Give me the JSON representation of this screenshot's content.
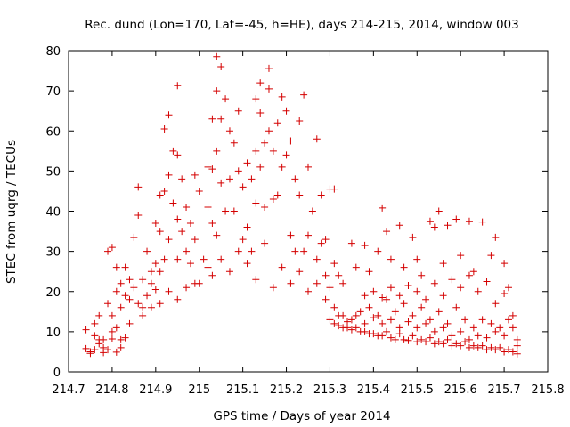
{
  "chart_data": {
    "type": "scatter",
    "title": "Rec. dund (Lon=170, Lat=-45, h=HE), days 214-215, 2014, window 003",
    "xlabel": "GPS time / Days of year 2014",
    "ylabel": "STEC from uqrg / TECUs",
    "xlim": [
      214.7,
      215.8
    ],
    "ylim": [
      0,
      80
    ],
    "xticks": [
      "214.7",
      "214.8",
      "214.9",
      "215",
      "215.1",
      "215.2",
      "215.3",
      "215.4",
      "215.5",
      "215.6",
      "215.7",
      "215.8"
    ],
    "yticks": [
      "0",
      "10",
      "20",
      "30",
      "40",
      "50",
      "60",
      "70",
      "80"
    ],
    "grid": false,
    "marker": "+",
    "colors": {
      "points": "#d40000",
      "axes": "#000000"
    },
    "series": [
      {
        "points": [
          [
            214.74,
            10.5
          ],
          [
            214.74,
            5.8
          ],
          [
            214.75,
            5.0
          ],
          [
            214.75,
            4.6
          ],
          [
            214.76,
            9.0
          ],
          [
            214.76,
            5.5
          ],
          [
            214.77,
            14.0
          ],
          [
            214.77,
            7.0
          ],
          [
            214.78,
            4.8
          ],
          [
            214.78,
            8.0
          ],
          [
            214.79,
            30.0
          ],
          [
            214.79,
            17.0
          ],
          [
            214.79,
            5.5
          ],
          [
            214.8,
            31.0
          ],
          [
            214.8,
            14.0
          ],
          [
            214.8,
            8.2
          ],
          [
            214.81,
            26.0
          ],
          [
            214.81,
            20.0
          ],
          [
            214.81,
            11.0
          ],
          [
            214.81,
            4.9
          ],
          [
            214.82,
            22.0
          ],
          [
            214.82,
            16.0
          ],
          [
            214.82,
            6.0
          ],
          [
            214.83,
            26.0
          ],
          [
            214.83,
            19.0
          ],
          [
            214.83,
            8.5
          ],
          [
            214.84,
            23.0
          ],
          [
            214.84,
            12.0
          ],
          [
            214.85,
            33.5
          ],
          [
            214.85,
            21.0
          ],
          [
            214.86,
            46.0
          ],
          [
            214.86,
            39.0
          ],
          [
            214.86,
            17.0
          ],
          [
            214.87,
            23.0
          ],
          [
            214.87,
            14.0
          ],
          [
            214.88,
            30.0
          ],
          [
            214.88,
            19.0
          ],
          [
            214.89,
            25.0
          ],
          [
            214.89,
            16.0
          ],
          [
            214.9,
            37.0
          ],
          [
            214.9,
            27.0
          ],
          [
            214.9,
            20.5
          ],
          [
            214.91,
            44.0
          ],
          [
            214.91,
            35.0
          ],
          [
            214.91,
            25.0
          ],
          [
            214.92,
            60.5
          ],
          [
            214.92,
            45.0
          ],
          [
            214.92,
            28.0
          ],
          [
            214.93,
            64.0
          ],
          [
            214.93,
            49.0
          ],
          [
            214.93,
            33.0
          ],
          [
            214.94,
            55.0
          ],
          [
            214.94,
            42.0
          ],
          [
            214.95,
            71.3
          ],
          [
            214.95,
            54.0
          ],
          [
            214.95,
            38.0
          ],
          [
            214.95,
            28.0
          ],
          [
            214.96,
            48.0
          ],
          [
            214.96,
            35.0
          ],
          [
            214.97,
            41.0
          ],
          [
            214.97,
            30.0
          ],
          [
            214.98,
            37.0
          ],
          [
            214.98,
            27.0
          ],
          [
            214.99,
            49.0
          ],
          [
            214.99,
            33.0
          ],
          [
            215.0,
            45.0
          ],
          [
            215.0,
            22.0
          ],
          [
            215.02,
            51.0
          ],
          [
            215.02,
            41.0
          ],
          [
            215.02,
            26.0
          ],
          [
            215.03,
            63.0
          ],
          [
            215.03,
            50.5
          ],
          [
            215.03,
            37.0
          ],
          [
            215.04,
            78.5
          ],
          [
            215.04,
            70.0
          ],
          [
            215.04,
            55.0
          ],
          [
            215.04,
            34.0
          ],
          [
            215.05,
            76.0
          ],
          [
            215.05,
            63.0
          ],
          [
            215.05,
            47.0
          ],
          [
            215.06,
            68.0
          ],
          [
            215.06,
            40.0
          ],
          [
            215.07,
            60.0
          ],
          [
            215.07,
            48.0
          ],
          [
            215.08,
            57.0
          ],
          [
            215.08,
            40.0
          ],
          [
            215.09,
            65.0
          ],
          [
            215.09,
            50.0
          ],
          [
            215.1,
            46.0
          ],
          [
            215.1,
            33.0
          ],
          [
            215.11,
            52.0
          ],
          [
            215.11,
            36.0
          ],
          [
            215.12,
            48.0
          ],
          [
            215.12,
            30.0
          ],
          [
            215.13,
            68.0
          ],
          [
            215.13,
            55.0
          ],
          [
            215.13,
            42.0
          ],
          [
            215.14,
            72.0
          ],
          [
            215.14,
            64.5
          ],
          [
            215.14,
            51.0
          ],
          [
            215.15,
            57.0
          ],
          [
            215.15,
            41.0
          ],
          [
            215.16,
            75.6
          ],
          [
            215.16,
            70.5
          ],
          [
            215.16,
            60.0
          ],
          [
            215.17,
            55.0
          ],
          [
            215.17,
            43.0
          ],
          [
            215.18,
            62.0
          ],
          [
            215.18,
            44.0
          ],
          [
            215.19,
            68.5
          ],
          [
            215.19,
            51.0
          ],
          [
            215.2,
            65.0
          ],
          [
            215.2,
            54.0
          ],
          [
            215.21,
            57.5
          ],
          [
            215.21,
            34.0
          ],
          [
            215.22,
            48.0
          ],
          [
            215.22,
            30.0
          ],
          [
            215.23,
            62.5
          ],
          [
            215.23,
            44.0
          ],
          [
            215.24,
            69.0
          ],
          [
            215.24,
            30.0
          ],
          [
            215.25,
            51.0
          ],
          [
            215.25,
            34.0
          ],
          [
            215.26,
            40.0
          ],
          [
            215.27,
            58.0
          ],
          [
            215.27,
            28.0
          ],
          [
            215.28,
            44.0
          ],
          [
            215.28,
            32.0
          ],
          [
            215.29,
            33.0
          ],
          [
            215.29,
            24.0
          ],
          [
            215.3,
            45.5
          ],
          [
            215.3,
            21.0
          ],
          [
            215.31,
            45.5
          ],
          [
            215.31,
            27.0
          ],
          [
            215.32,
            24.0
          ],
          [
            215.33,
            22.0
          ],
          [
            215.35,
            32.0
          ],
          [
            215.36,
            26.0
          ],
          [
            215.38,
            31.5
          ],
          [
            215.39,
            25.0
          ],
          [
            215.41,
            30.0
          ],
          [
            215.42,
            40.8
          ],
          [
            215.43,
            35.0
          ],
          [
            215.44,
            28.0
          ],
          [
            215.46,
            36.5
          ],
          [
            215.47,
            26.0
          ],
          [
            215.49,
            33.5
          ],
          [
            215.5,
            28.0
          ],
          [
            215.51,
            24.0
          ],
          [
            215.53,
            37.5
          ],
          [
            215.54,
            36.0
          ],
          [
            215.55,
            40.0
          ],
          [
            215.56,
            27.0
          ],
          [
            215.57,
            36.5
          ],
          [
            215.59,
            38.0
          ],
          [
            215.6,
            29.0
          ],
          [
            215.62,
            37.5
          ],
          [
            215.63,
            25.0
          ],
          [
            215.65,
            37.3
          ],
          [
            215.67,
            29.0
          ],
          [
            215.68,
            33.5
          ],
          [
            215.7,
            27.0
          ],
          [
            215.71,
            21.0
          ],
          [
            214.76,
            12.0
          ],
          [
            214.77,
            8.0
          ],
          [
            214.78,
            6.0
          ],
          [
            214.8,
            10.0
          ],
          [
            214.82,
            8.0
          ],
          [
            214.84,
            18.0
          ],
          [
            214.87,
            16.0
          ],
          [
            214.89,
            22.0
          ],
          [
            214.91,
            17.0
          ],
          [
            214.93,
            20.0
          ],
          [
            214.95,
            18.0
          ],
          [
            214.97,
            21.0
          ],
          [
            214.99,
            22.0
          ],
          [
            215.01,
            28.0
          ],
          [
            215.03,
            24.0
          ],
          [
            215.05,
            28.0
          ],
          [
            215.07,
            25.0
          ],
          [
            215.09,
            30.0
          ],
          [
            215.11,
            27.0
          ],
          [
            215.13,
            23.0
          ],
          [
            215.15,
            32.0
          ],
          [
            215.17,
            21.0
          ],
          [
            215.19,
            26.0
          ],
          [
            215.21,
            22.0
          ],
          [
            215.23,
            25.0
          ],
          [
            215.25,
            20.0
          ],
          [
            215.27,
            22.0
          ],
          [
            215.29,
            18.0
          ],
          [
            215.31,
            16.0
          ],
          [
            215.33,
            14.0
          ],
          [
            215.35,
            13.0
          ],
          [
            215.37,
            15.0
          ],
          [
            215.39,
            16.0
          ],
          [
            215.41,
            14.0
          ],
          [
            215.43,
            18.0
          ],
          [
            215.45,
            15.0
          ],
          [
            215.47,
            17.0
          ],
          [
            215.49,
            14.0
          ],
          [
            215.51,
            16.0
          ],
          [
            215.53,
            13.0
          ],
          [
            215.55,
            15.0
          ],
          [
            215.57,
            12.0
          ],
          [
            215.59,
            16.0
          ],
          [
            215.61,
            13.0
          ],
          [
            215.63,
            11.0
          ],
          [
            215.65,
            13.0
          ],
          [
            215.67,
            12.0
          ],
          [
            215.69,
            11.0
          ],
          [
            215.71,
            13.0
          ],
          [
            215.3,
            13.0
          ],
          [
            215.31,
            12.0
          ],
          [
            215.32,
            11.5
          ],
          [
            215.33,
            11.0
          ],
          [
            215.34,
            11.0
          ],
          [
            215.35,
            10.5
          ],
          [
            215.36,
            11.0
          ],
          [
            215.37,
            10.0
          ],
          [
            215.38,
            10.0
          ],
          [
            215.39,
            9.5
          ],
          [
            215.4,
            9.5
          ],
          [
            215.41,
            9.0
          ],
          [
            215.42,
            9.0
          ],
          [
            215.43,
            10.0
          ],
          [
            215.44,
            8.5
          ],
          [
            215.45,
            8.0
          ],
          [
            215.46,
            9.5
          ],
          [
            215.47,
            8.0
          ],
          [
            215.48,
            7.8
          ],
          [
            215.49,
            9.0
          ],
          [
            215.5,
            7.5
          ],
          [
            215.51,
            8.0
          ],
          [
            215.52,
            7.5
          ],
          [
            215.53,
            8.5
          ],
          [
            215.54,
            7.0
          ],
          [
            215.55,
            7.5
          ],
          [
            215.56,
            7.0
          ],
          [
            215.57,
            8.0
          ],
          [
            215.58,
            6.5
          ],
          [
            215.59,
            7.0
          ],
          [
            215.6,
            6.5
          ],
          [
            215.61,
            7.5
          ],
          [
            215.62,
            6.0
          ],
          [
            215.63,
            6.5
          ],
          [
            215.64,
            6.0
          ],
          [
            215.65,
            6.5
          ],
          [
            215.66,
            5.5
          ],
          [
            215.67,
            6.0
          ],
          [
            215.68,
            5.5
          ],
          [
            215.69,
            6.0
          ],
          [
            215.7,
            5.0
          ],
          [
            215.71,
            5.5
          ],
          [
            215.72,
            5.0
          ],
          [
            215.73,
            4.5
          ],
          [
            215.38,
            19.0
          ],
          [
            215.4,
            20.0
          ],
          [
            215.42,
            18.5
          ],
          [
            215.44,
            21.0
          ],
          [
            215.46,
            19.0
          ],
          [
            215.48,
            21.5
          ],
          [
            215.5,
            20.0
          ],
          [
            215.52,
            18.0
          ],
          [
            215.54,
            22.0
          ],
          [
            215.56,
            19.0
          ],
          [
            215.58,
            23.0
          ],
          [
            215.6,
            21.0
          ],
          [
            215.62,
            24.0
          ],
          [
            215.64,
            20.0
          ],
          [
            215.66,
            22.5
          ],
          [
            215.68,
            17.0
          ],
          [
            215.7,
            19.5
          ],
          [
            215.72,
            14.0
          ],
          [
            215.73,
            8.0
          ],
          [
            215.73,
            6.5
          ],
          [
            215.72,
            11.0
          ],
          [
            215.7,
            9.0
          ],
          [
            215.68,
            10.0
          ],
          [
            215.66,
            8.5
          ],
          [
            215.64,
            9.0
          ],
          [
            215.62,
            8.0
          ],
          [
            215.6,
            10.0
          ],
          [
            215.58,
            9.0
          ],
          [
            215.56,
            11.0
          ],
          [
            215.54,
            10.0
          ],
          [
            215.52,
            12.0
          ],
          [
            215.5,
            11.0
          ],
          [
            215.48,
            12.5
          ],
          [
            215.46,
            11.0
          ],
          [
            215.44,
            13.0
          ],
          [
            215.42,
            12.0
          ],
          [
            215.4,
            13.5
          ],
          [
            215.38,
            12.0
          ],
          [
            215.36,
            14.0
          ],
          [
            215.34,
            12.5
          ],
          [
            215.32,
            14.0
          ]
        ]
      }
    ]
  }
}
